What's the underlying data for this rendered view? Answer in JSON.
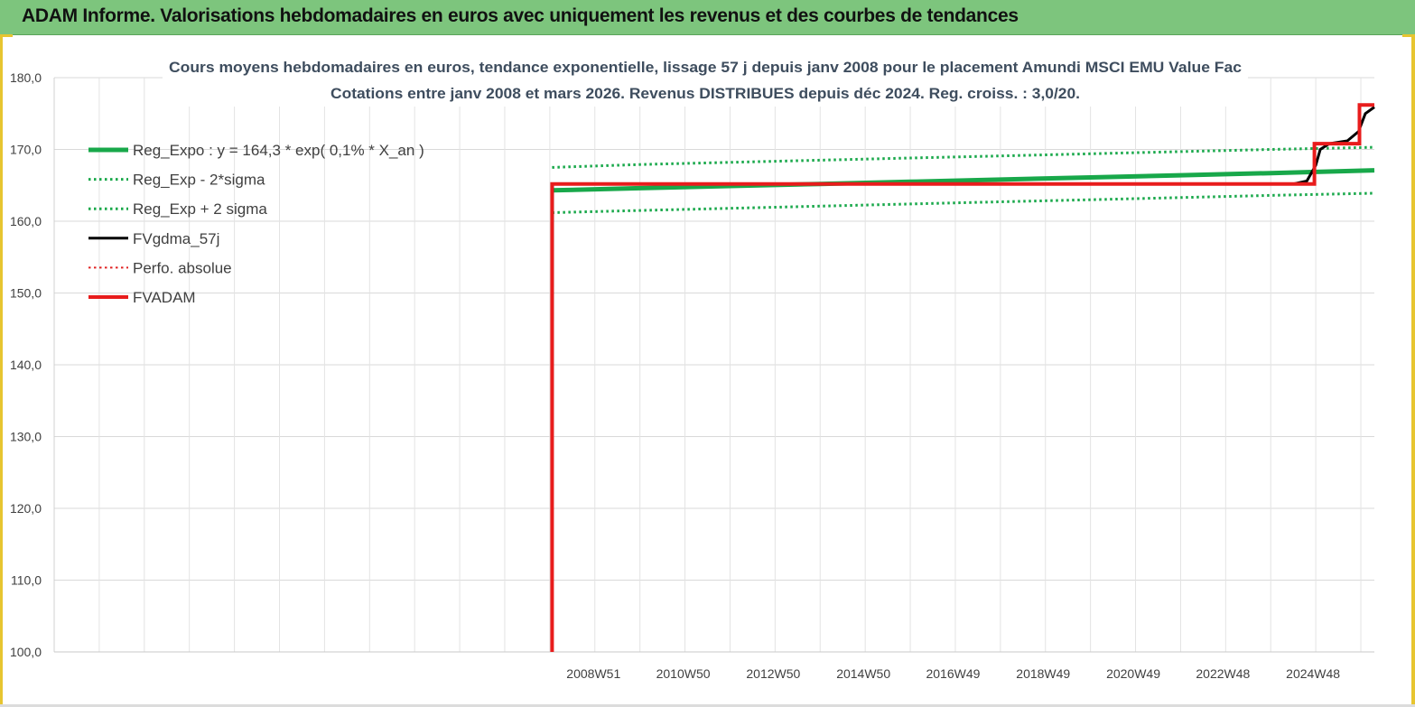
{
  "header": {
    "title": "ADAM Informe. Valorisations hebdomadaires en euros avec uniquement les revenus et des courbes de tendances"
  },
  "chart_data": {
    "type": "line",
    "title_line1": "Cours moyens hebdomadaires en euros, tendance exponentielle, lissage 57 j depuis janv 2008  pour le placement Amundi MSCI EMU Value Fac",
    "title_line2": "Cotations entre janv 2008 et mars 2026. Revenus DISTRIBUES depuis déc 2024. Reg. croiss. : 3,0/20.",
    "xlabel": "",
    "ylabel": "",
    "ylim": [
      100,
      180
    ],
    "yticks": [
      100,
      110,
      120,
      130,
      140,
      150,
      160,
      170,
      180
    ],
    "ytick_labels": [
      "100,0",
      "110,0",
      "120,0",
      "130,0",
      "140,0",
      "150,0",
      "160,0",
      "170,0",
      "180,0"
    ],
    "xlim": [
      1997.0,
      2026.3
    ],
    "xticks": [
      {
        "label": "2008W51",
        "x": 2008.97
      },
      {
        "label": "2010W50",
        "x": 2010.96
      },
      {
        "label": "2012W50",
        "x": 2012.96
      },
      {
        "label": "2014W50",
        "x": 2014.96
      },
      {
        "label": "2016W49",
        "x": 2016.95
      },
      {
        "label": "2018W49",
        "x": 2018.95
      },
      {
        "label": "2020W49",
        "x": 2020.95
      },
      {
        "label": "2022W48",
        "x": 2022.94
      },
      {
        "label": "2024W48",
        "x": 2024.94
      }
    ],
    "grid": true,
    "legend_position": "top-left",
    "series": [
      {
        "name": "Reg_Expo : y = 164,3 * exp( 0,1% *  X_an )",
        "color": "#18a84a",
        "style": "solid",
        "width": 5,
        "x": [
          2008.05,
          2010,
          2012,
          2014,
          2016,
          2018,
          2020,
          2022,
          2024,
          2026.3
        ],
        "y": [
          164.3,
          164.6,
          164.9,
          165.2,
          165.5,
          165.8,
          166.1,
          166.4,
          166.7,
          167.1
        ]
      },
      {
        "name": "Reg_Exp - 2*sigma",
        "color": "#18a84a",
        "style": "dotted",
        "width": 3,
        "x": [
          2008.05,
          2010,
          2012,
          2014,
          2016,
          2018,
          2020,
          2022,
          2024,
          2026.3
        ],
        "y": [
          167.5,
          167.9,
          168.2,
          168.5,
          168.8,
          169.1,
          169.4,
          169.7,
          170.0,
          170.3
        ]
      },
      {
        "name": "Reg_Exp + 2 sigma",
        "color": "#18a84a",
        "style": "dotted",
        "width": 3,
        "x": [
          2008.05,
          2010,
          2012,
          2014,
          2016,
          2018,
          2020,
          2022,
          2024,
          2026.3
        ],
        "y": [
          161.2,
          161.5,
          161.8,
          162.1,
          162.4,
          162.7,
          163.0,
          163.3,
          163.6,
          163.9
        ]
      },
      {
        "name": "FVgdma_57j",
        "color": "#000000",
        "style": "solid",
        "width": 3,
        "x": [
          2008.05,
          2008.06,
          2024.5,
          2024.8,
          2025.0,
          2025.1,
          2025.3,
          2025.7,
          2025.95,
          2026.1,
          2026.3
        ],
        "y": [
          100,
          165.2,
          165.2,
          165.6,
          167.8,
          170.0,
          170.8,
          171.2,
          172.5,
          175.0,
          175.9
        ]
      },
      {
        "name": "Perfo. absolue",
        "color": "#e02020",
        "style": "dotted",
        "width": 2,
        "x": [],
        "y": []
      },
      {
        "name": "FVADAM",
        "color": "#e81c1c",
        "style": "solid",
        "width": 4,
        "x": [
          2008.05,
          2008.05,
          2024.97,
          2024.97,
          2025.97,
          2025.97,
          2026.3
        ],
        "y": [
          100,
          165.2,
          165.2,
          170.8,
          170.8,
          176.2,
          176.2
        ]
      }
    ]
  }
}
